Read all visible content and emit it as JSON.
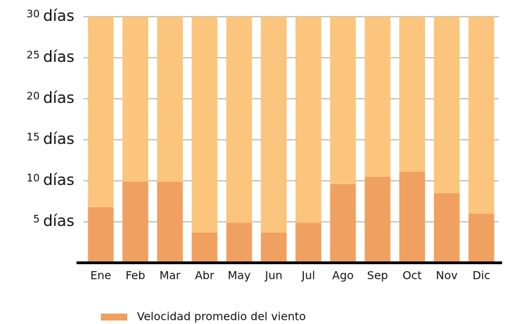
{
  "chart_data": {
    "type": "stacked_bar",
    "categories": [
      "Ene",
      "Feb",
      "Mar",
      "Abr",
      "May",
      "Jun",
      "Jul",
      "Ago",
      "Sep",
      "Oct",
      "Nov",
      "Dic"
    ],
    "series": [
      {
        "name": "Velocidad promedio del viento",
        "color": "#f0a060",
        "values": [
          6.8,
          9.9,
          9.9,
          3.7,
          4.9,
          3.7,
          4.9,
          9.6,
          10.5,
          11.1,
          8.5,
          6.0
        ]
      },
      {
        "color": "#fbc57d",
        "values": [
          23.2,
          20.1,
          20.1,
          26.3,
          25.1,
          26.3,
          25.1,
          20.4,
          19.5,
          18.9,
          21.5,
          24.0
        ]
      }
    ],
    "ylim": [
      0,
      30
    ],
    "yticks": [
      {
        "value": 5,
        "label": "5 días"
      },
      {
        "value": 10,
        "label": "10 días"
      },
      {
        "value": 15,
        "label": "15 días"
      },
      {
        "value": 20,
        "label": "20 días"
      },
      {
        "value": 25,
        "label": "25 días"
      },
      {
        "value": 30,
        "label": "30 días"
      }
    ],
    "grid": true
  }
}
